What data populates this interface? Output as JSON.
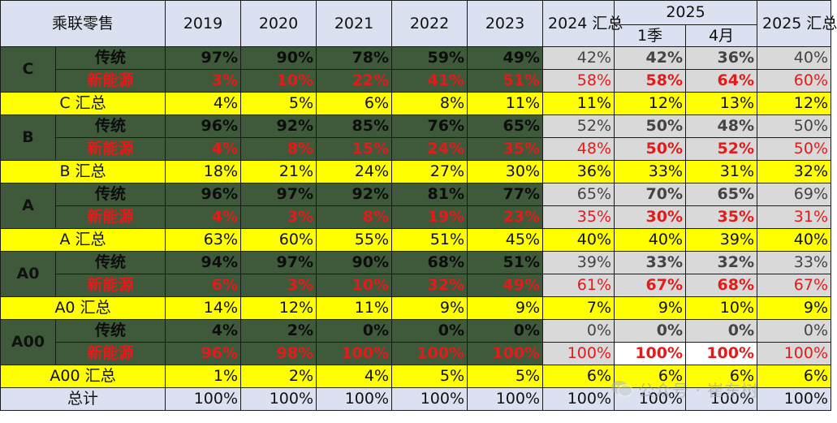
{
  "header": {
    "corner": "乘联零售",
    "years": [
      "2019",
      "2020",
      "2021",
      "2022",
      "2023"
    ],
    "col_2024": "2024 汇总",
    "col_2025_group": "2025",
    "col_2025_q1": "1季",
    "col_2025_apr": "4月",
    "col_2025_total": "2025 汇总"
  },
  "segments": [
    {
      "name": "C",
      "trad_label": "传统",
      "ev_label": "新能源",
      "sum_label": "C 汇总",
      "trad": [
        "97%",
        "90%",
        "78%",
        "59%",
        "49%",
        "42%",
        "42%",
        "36%",
        "40%"
      ],
      "ev": [
        "3%",
        "10%",
        "22%",
        "41%",
        "51%",
        "58%",
        "58%",
        "64%",
        "60%"
      ],
      "sum": [
        "4%",
        "5%",
        "6%",
        "8%",
        "11%",
        "11%",
        "12%",
        "13%",
        "12%"
      ]
    },
    {
      "name": "B",
      "trad_label": "传统",
      "ev_label": "新能源",
      "sum_label": "B 汇总",
      "trad": [
        "96%",
        "92%",
        "85%",
        "76%",
        "65%",
        "52%",
        "50%",
        "48%",
        "50%"
      ],
      "ev": [
        "4%",
        "8%",
        "15%",
        "24%",
        "35%",
        "48%",
        "50%",
        "52%",
        "50%"
      ],
      "sum": [
        "18%",
        "21%",
        "24%",
        "27%",
        "30%",
        "36%",
        "33%",
        "31%",
        "32%"
      ]
    },
    {
      "name": "A",
      "trad_label": "传统",
      "ev_label": "新能源",
      "sum_label": "A 汇总",
      "trad": [
        "96%",
        "97%",
        "92%",
        "81%",
        "77%",
        "65%",
        "70%",
        "65%",
        "69%"
      ],
      "ev": [
        "4%",
        "3%",
        "8%",
        "19%",
        "23%",
        "35%",
        "30%",
        "35%",
        "31%"
      ],
      "sum": [
        "63%",
        "60%",
        "55%",
        "51%",
        "45%",
        "40%",
        "40%",
        "39%",
        "40%"
      ]
    },
    {
      "name": "A0",
      "trad_label": "传统",
      "ev_label": "新能源",
      "sum_label": "A0 汇总",
      "trad": [
        "94%",
        "97%",
        "90%",
        "68%",
        "51%",
        "39%",
        "33%",
        "32%",
        "33%"
      ],
      "ev": [
        "6%",
        "3%",
        "10%",
        "32%",
        "49%",
        "61%",
        "67%",
        "68%",
        "67%"
      ],
      "sum": [
        "14%",
        "12%",
        "11%",
        "9%",
        "9%",
        "7%",
        "9%",
        "10%",
        "9%"
      ]
    },
    {
      "name": "A00",
      "trad_label": "传统",
      "ev_label": "新能源",
      "sum_label": "A00 汇总",
      "trad": [
        "4%",
        "2%",
        "0%",
        "0%",
        "0%",
        "0%",
        "0%",
        "0%",
        "0%"
      ],
      "ev": [
        "96%",
        "98%",
        "100%",
        "100%",
        "100%",
        "100%",
        "100%",
        "100%",
        "100%"
      ],
      "sum": [
        "1%",
        "2%",
        "4%",
        "5%",
        "5%",
        "6%",
        "6%",
        "6%",
        "6%"
      ]
    }
  ],
  "total": {
    "label": "总计",
    "values": [
      "100%",
      "100%",
      "100%",
      "100%",
      "100%",
      "100%",
      "100%",
      "100%",
      "100%"
    ]
  },
  "watermark": {
    "text": "公众号 · 崔东树",
    "icon": "wechat-icon"
  },
  "colors": {
    "header_bg": "#dbe1f1",
    "dark_green": "#3e5a3b",
    "highlight_yellow": "#ffff00",
    "gray_cell": "#d9d9d9",
    "ev_red": "#e21b1b"
  }
}
